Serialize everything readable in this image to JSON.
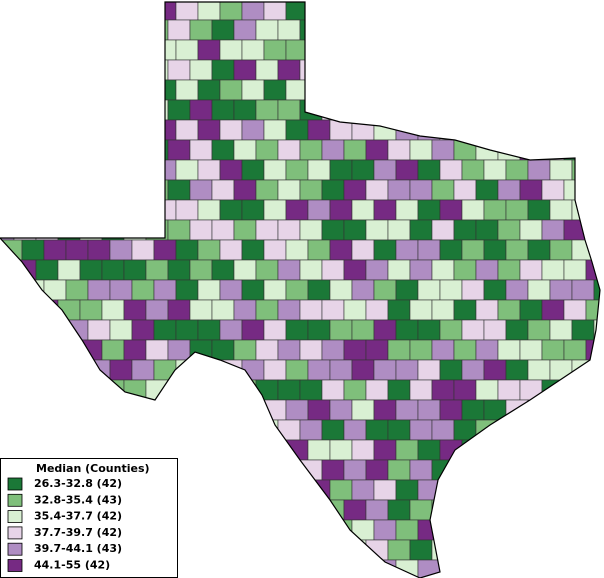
{
  "legend": {
    "title": "Median (Counties)",
    "items": [
      {
        "label": "26.3-32.8 (42)",
        "color": "#1b7837"
      },
      {
        "label": "32.8-35.4 (43)",
        "color": "#7fbf7b"
      },
      {
        "label": "35.4-37.7 (42)",
        "color": "#d9f0d3"
      },
      {
        "label": "37.7-39.7 (42)",
        "color": "#e7d4e8"
      },
      {
        "label": "39.7-44.1 (43)",
        "color": "#af8dc3"
      },
      {
        "label": "44.1-55 (42)",
        "color": "#762a83"
      }
    ]
  }
}
